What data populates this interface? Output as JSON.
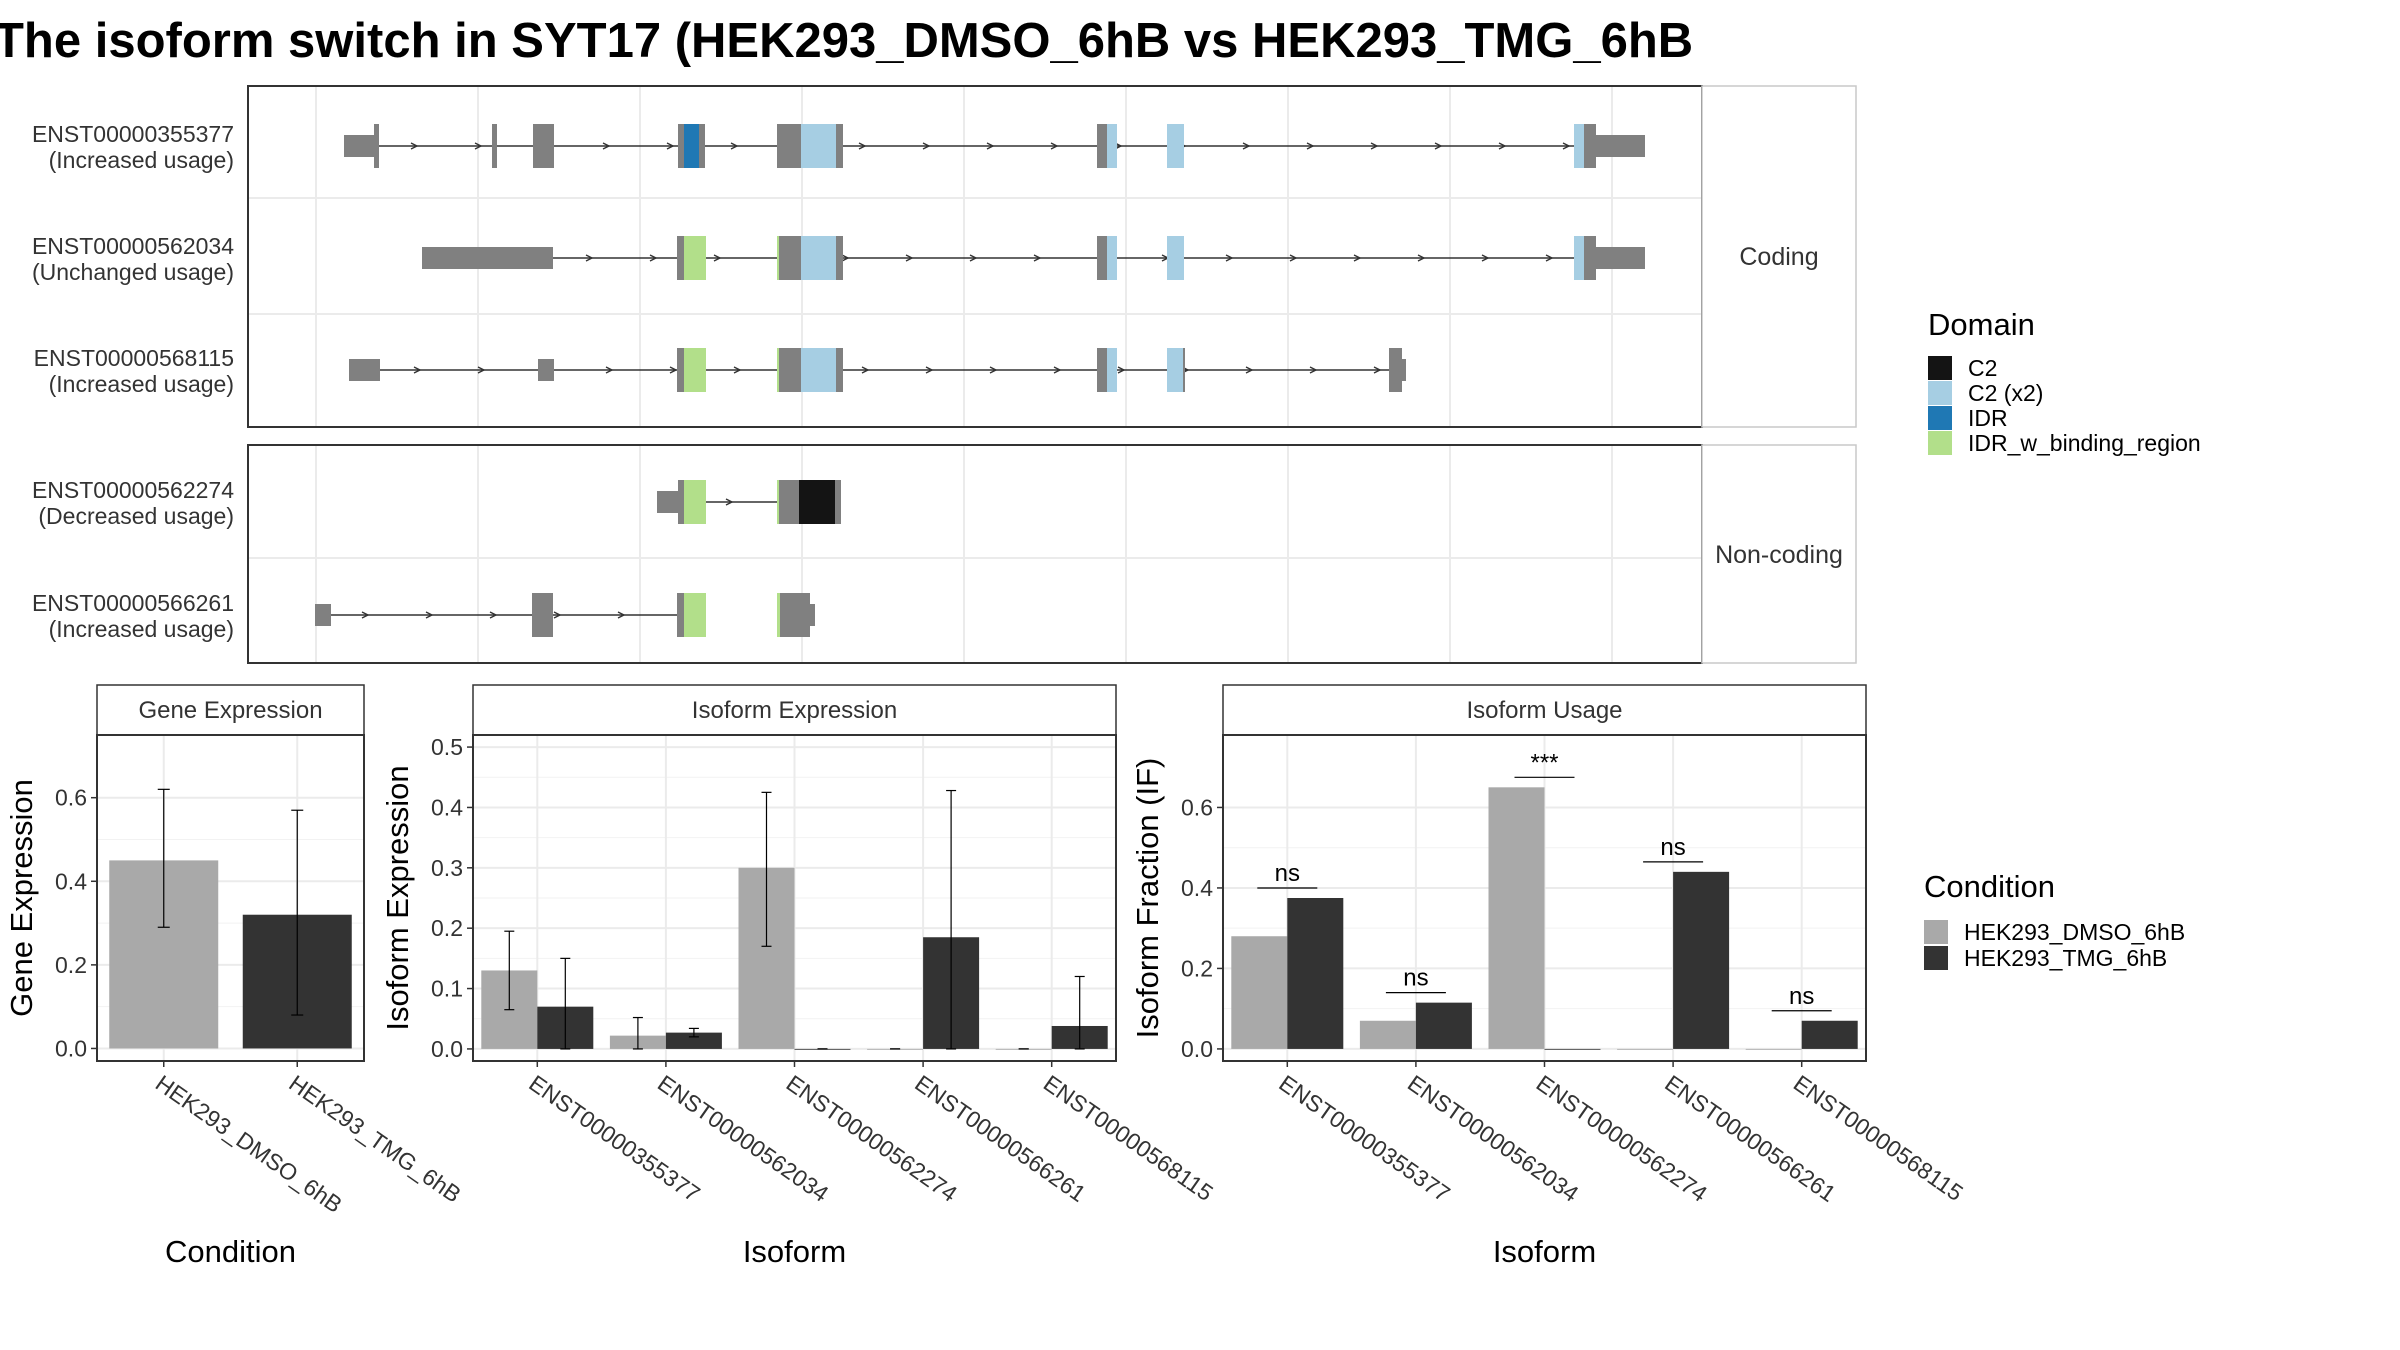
{
  "title": "The isoform switch in SYT17 (HEK293_DMSO_6hB vs HEK293_TMG_6hB",
  "colors": {
    "exon": "#808080",
    "C2": "#141414",
    "C2_x2": "#a6cee3",
    "IDR": "#1f78b4",
    "IDR_w_binding_region": "#b2df8a",
    "DMSO": "#a9a9a9",
    "TMG": "#333333"
  },
  "structure": {
    "facets": [
      "Coding",
      "Non-coding"
    ],
    "transcripts": [
      {
        "id": "ENST00000355377",
        "usage": "(Increased usage)",
        "facet": "Coding"
      },
      {
        "id": "ENST00000562034",
        "usage": "(Unchanged usage)",
        "facet": "Coding"
      },
      {
        "id": "ENST00000568115",
        "usage": "(Increased usage)",
        "facet": "Coding"
      },
      {
        "id": "ENST00000562274",
        "usage": "(Decreased usage)",
        "facet": "Non-coding"
      },
      {
        "id": "ENST00000566261",
        "usage": "(Increased usage)",
        "facet": "Non-coding"
      }
    ]
  },
  "legend_domain": {
    "title": "Domain",
    "items": [
      {
        "label": "C2",
        "color": "#141414"
      },
      {
        "label": "C2 (x2)",
        "color": "#a6cee3"
      },
      {
        "label": "IDR",
        "color": "#1f78b4"
      },
      {
        "label": "IDR_w_binding_region",
        "color": "#b2df8a"
      }
    ]
  },
  "legend_condition": {
    "title": "Condition",
    "items": [
      {
        "label": "HEK293_DMSO_6hB",
        "color": "#a9a9a9"
      },
      {
        "label": "HEK293_TMG_6hB",
        "color": "#333333"
      }
    ]
  },
  "chart_data": [
    {
      "type": "bar",
      "title": "Gene Expression",
      "xlabel": "Condition",
      "ylabel": "Gene Expression",
      "categories": [
        "HEK293_DMSO_6hB",
        "HEK293_TMG_6hB"
      ],
      "values": [
        0.45,
        0.32
      ],
      "error_low": [
        0.29,
        0.08
      ],
      "error_high": [
        0.62,
        0.57
      ],
      "ylim": [
        -0.03,
        0.75
      ],
      "yticks": [
        0.0,
        0.2,
        0.4,
        0.6
      ]
    },
    {
      "type": "bar",
      "title": "Isoform Expression",
      "xlabel": "Isoform",
      "ylabel": "Isoform Expression",
      "categories": [
        "ENST00000355377",
        "ENST00000562034",
        "ENST00000562274",
        "ENST00000566261",
        "ENST00000568115"
      ],
      "series": [
        {
          "name": "HEK293_DMSO_6hB",
          "values": [
            0.13,
            0.022,
            0.3,
            0.0,
            0.0
          ],
          "error_low": [
            0.065,
            0.0,
            0.17,
            0.0,
            0.0
          ],
          "error_high": [
            0.195,
            0.052,
            0.425,
            0.0,
            0.0
          ]
        },
        {
          "name": "HEK293_TMG_6hB",
          "values": [
            0.07,
            0.027,
            0.0,
            0.185,
            0.038
          ],
          "error_low": [
            0.0,
            0.02,
            0.0,
            0.0,
            0.0
          ],
          "error_high": [
            0.15,
            0.034,
            0.0,
            0.428,
            0.12
          ]
        }
      ],
      "ylim": [
        -0.02,
        0.52
      ],
      "yticks": [
        0.0,
        0.1,
        0.2,
        0.3,
        0.4,
        0.5
      ]
    },
    {
      "type": "bar",
      "title": "Isoform Usage",
      "xlabel": "Isoform",
      "ylabel": "Isoform Fraction (IF)",
      "categories": [
        "ENST00000355377",
        "ENST00000562034",
        "ENST00000562274",
        "ENST00000566261",
        "ENST00000568115"
      ],
      "series": [
        {
          "name": "HEK293_DMSO_6hB",
          "values": [
            0.28,
            0.07,
            0.65,
            0.0,
            0.0
          ]
        },
        {
          "name": "HEK293_TMG_6hB",
          "values": [
            0.375,
            0.115,
            0.0,
            0.44,
            0.07
          ]
        }
      ],
      "significance": [
        "ns",
        "ns",
        "***",
        "ns",
        "ns"
      ],
      "ylim": [
        -0.03,
        0.78
      ],
      "yticks": [
        0.0,
        0.2,
        0.4,
        0.6
      ]
    }
  ]
}
